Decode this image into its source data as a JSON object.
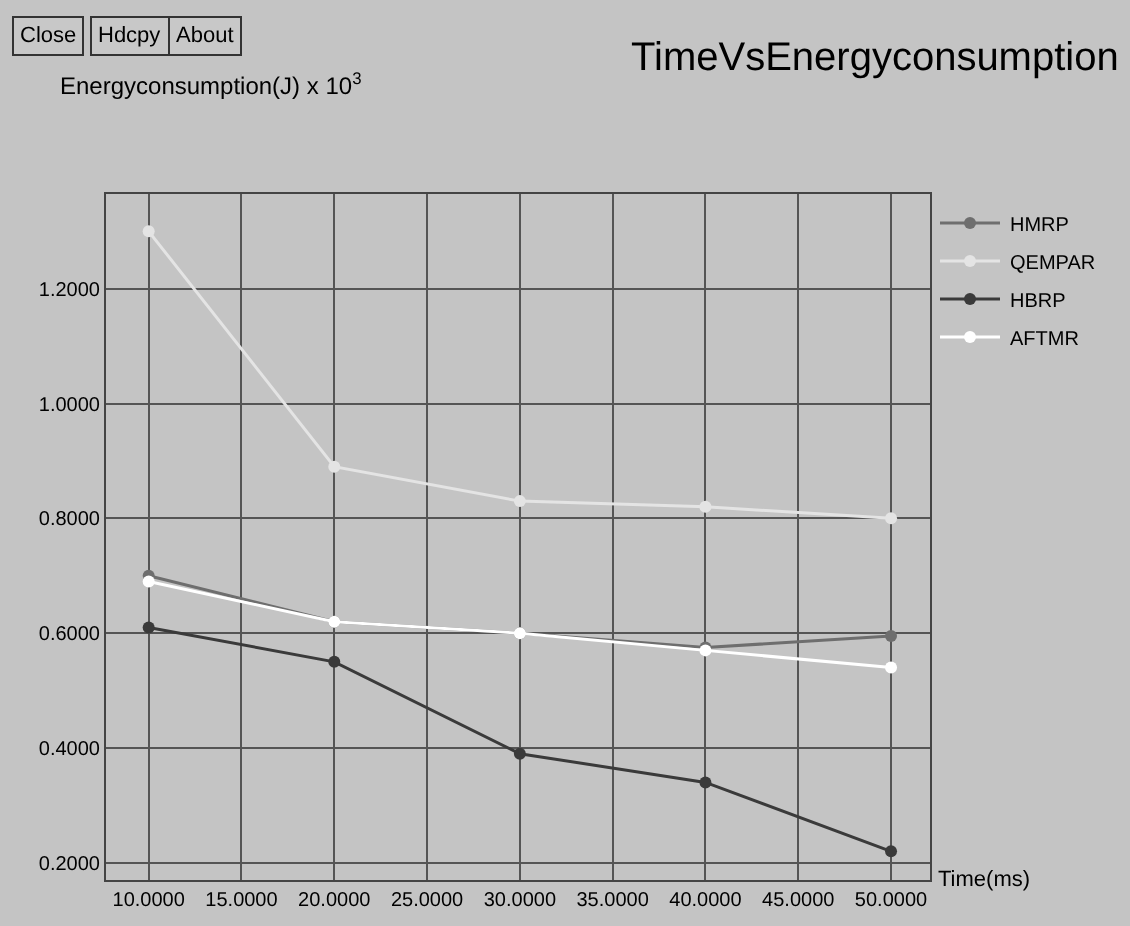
{
  "chart_data": {
    "type": "line",
    "title": "TimeVsEnergyconsumption",
    "xlabel": "Time(ms)",
    "ylabel": "Energyconsumption(J) x 10$^{3}$",
    "annotations": [
      "Close",
      "Hdcpy",
      "About"
    ],
    "x": [
      10,
      20,
      30,
      40,
      50
    ],
    "series": [
      {
        "name": "HMRP",
        "color": "#6e6e6e",
        "values": [
          0.7,
          0.62,
          0.6,
          0.575,
          0.595
        ]
      },
      {
        "name": "QEMPAR",
        "color": "#e4e4e4",
        "values": [
          1.3,
          0.89,
          0.83,
          0.82,
          0.8
        ]
      },
      {
        "name": "HBRP",
        "color": "#3a3a3a",
        "values": [
          0.61,
          0.55,
          0.39,
          0.34,
          0.22
        ]
      },
      {
        "name": "AFTMR",
        "color": "#ffffff",
        "values": [
          0.69,
          0.62,
          0.6,
          0.57,
          0.54
        ]
      }
    ],
    "xlim": [
      7.7,
      52.1
    ],
    "xticks": [
      {
        "value": 10,
        "label": "10.0000"
      },
      {
        "value": 15,
        "label": "15.0000"
      },
      {
        "value": 20,
        "label": "20.0000"
      },
      {
        "value": 25,
        "label": "25.0000"
      },
      {
        "value": 30,
        "label": "30.0000"
      },
      {
        "value": 35,
        "label": "35.0000"
      },
      {
        "value": 40,
        "label": "40.0000"
      },
      {
        "value": 45,
        "label": "45.0000"
      },
      {
        "value": 50,
        "label": "50.0000"
      }
    ],
    "ylim": [
      0.17,
      1.365
    ],
    "yticks": [
      {
        "value": 0.2,
        "label": "0.2000"
      },
      {
        "value": 0.4,
        "label": "0.4000"
      },
      {
        "value": 0.6,
        "label": "0.6000"
      },
      {
        "value": 0.8,
        "label": "0.8000"
      },
      {
        "value": 1.0,
        "label": "1.0000"
      },
      {
        "value": 1.2,
        "label": "1.2000"
      }
    ],
    "grid": true,
    "legend": "right",
    "marker": "circle",
    "line_style": "solid"
  }
}
